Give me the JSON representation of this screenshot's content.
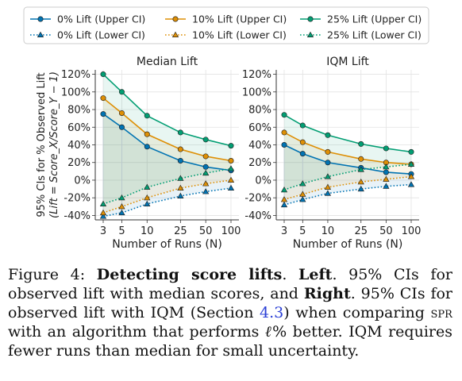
{
  "chart_data": [
    {
      "type": "line",
      "title": "Median Lift",
      "xlabel": "Number of Runs (N)",
      "ylabel": "95% CIs for % Observed Lift",
      "ylabel2": "(Lift = Score_X/Score_Y − 1)",
      "x": [
        3,
        5,
        10,
        25,
        50,
        100
      ],
      "x_scale": "log",
      "ylim": [
        -45,
        125
      ],
      "yticks": [
        "-40%",
        "-20%",
        "0%",
        "20%",
        "40%",
        "60%",
        "80%",
        "100%",
        "120%"
      ],
      "series": [
        {
          "name": "0% Lift (Upper CI)",
          "color": "#0173b2",
          "style": "solid",
          "marker": "circle",
          "values": [
            75,
            60,
            38,
            22,
            15,
            11
          ]
        },
        {
          "name": "0% Lift (Lower CI)",
          "color": "#0173b2",
          "style": "dotted",
          "marker": "triangle",
          "values": [
            -41,
            -37,
            -27,
            -18,
            -13,
            -9
          ]
        },
        {
          "name": "10% Lift (Upper CI)",
          "color": "#de8f05",
          "style": "solid",
          "marker": "circle",
          "values": [
            93,
            76,
            52,
            35,
            27,
            22
          ]
        },
        {
          "name": "10% Lift (Lower CI)",
          "color": "#de8f05",
          "style": "dotted",
          "marker": "triangle",
          "values": [
            -37,
            -30,
            -20,
            -9,
            -4,
            0
          ]
        },
        {
          "name": "25% Lift (Upper CI)",
          "color": "#029e73",
          "style": "solid",
          "marker": "circle",
          "values": [
            120,
            100,
            73,
            54,
            46,
            39
          ]
        },
        {
          "name": "25% Lift (Lower CI)",
          "color": "#029e73",
          "style": "dotted",
          "marker": "triangle",
          "values": [
            -27,
            -20,
            -8,
            2,
            8,
            13
          ]
        }
      ]
    },
    {
      "type": "line",
      "title": "IQM Lift",
      "xlabel": "Number of Runs (N)",
      "x": [
        3,
        5,
        10,
        25,
        50,
        100
      ],
      "x_scale": "log",
      "ylim": [
        -45,
        125
      ],
      "yticks": [
        "-40%",
        "-20%",
        "0%",
        "20%",
        "40%",
        "60%",
        "80%",
        "100%",
        "120%"
      ],
      "series": [
        {
          "name": "0% Lift (Upper CI)",
          "color": "#0173b2",
          "style": "solid",
          "marker": "circle",
          "values": [
            40,
            30,
            20,
            14,
            9,
            7
          ]
        },
        {
          "name": "0% Lift (Lower CI)",
          "color": "#0173b2",
          "style": "dotted",
          "marker": "triangle",
          "values": [
            -28,
            -22,
            -15,
            -10,
            -7,
            -5
          ]
        },
        {
          "name": "10% Lift (Upper CI)",
          "color": "#de8f05",
          "style": "solid",
          "marker": "circle",
          "values": [
            54,
            43,
            32,
            24,
            20,
            18
          ]
        },
        {
          "name": "10% Lift (Lower CI)",
          "color": "#de8f05",
          "style": "dotted",
          "marker": "triangle",
          "values": [
            -22,
            -16,
            -8,
            -2,
            1,
            4
          ]
        },
        {
          "name": "25% Lift (Upper CI)",
          "color": "#029e73",
          "style": "solid",
          "marker": "circle",
          "values": [
            74,
            62,
            51,
            41,
            36,
            32
          ]
        },
        {
          "name": "25% Lift (Lower CI)",
          "color": "#029e73",
          "style": "dotted",
          "marker": "triangle",
          "values": [
            -11,
            -4,
            4,
            12,
            15,
            18
          ]
        }
      ]
    }
  ],
  "legend_placement": "top",
  "caption": {
    "figure_label": "Figure 4: ",
    "bold1": "Detecting score lifts",
    "sep1": ". ",
    "bold2": "Left",
    "text1": ". 95% CIs for observed lift with median scores, and ",
    "bold3": "Right",
    "text2": ". 95% CIs for observed lift with IQM (Section ",
    "ref": "4.3",
    "text3": ") when comparing ",
    "smallcaps": "spr",
    "text4": " with an algorithm that performs ",
    "ell": "ℓ",
    "text5": "% better. IQM requires fewer runs than median for small uncertainty."
  }
}
